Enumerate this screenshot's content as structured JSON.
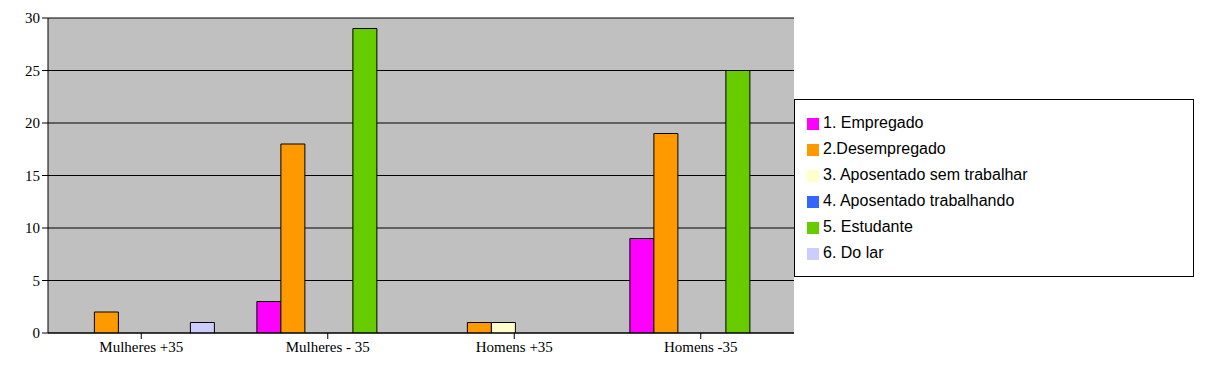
{
  "chart_data": {
    "type": "bar",
    "categories": [
      "Mulheres +35",
      "Mulheres - 35",
      "Homens +35",
      "Homens -35"
    ],
    "series": [
      {
        "name": "1. Empregado",
        "color": "#ff00ff",
        "values": [
          0,
          3,
          0,
          9
        ]
      },
      {
        "name": "2.Desempregado",
        "color": "#ff9900",
        "values": [
          2,
          18,
          1,
          19
        ]
      },
      {
        "name": "3. Aposentado sem trabalhar",
        "color": "#ffffcc",
        "values": [
          0,
          0,
          1,
          0
        ]
      },
      {
        "name": "4. Aposentado trabalhando",
        "color": "#3366ff",
        "values": [
          0,
          0,
          0,
          0
        ]
      },
      {
        "name": "5. Estudante",
        "color": "#66cc00",
        "values": [
          0,
          29,
          0,
          25
        ]
      },
      {
        "name": "6. Do lar",
        "color": "#ccccff",
        "values": [
          1,
          0,
          0,
          0
        ]
      }
    ],
    "ylim": [
      0,
      30
    ],
    "yticks": [
      0,
      5,
      10,
      15,
      20,
      25,
      30
    ],
    "grid": true,
    "legend": "right"
  }
}
